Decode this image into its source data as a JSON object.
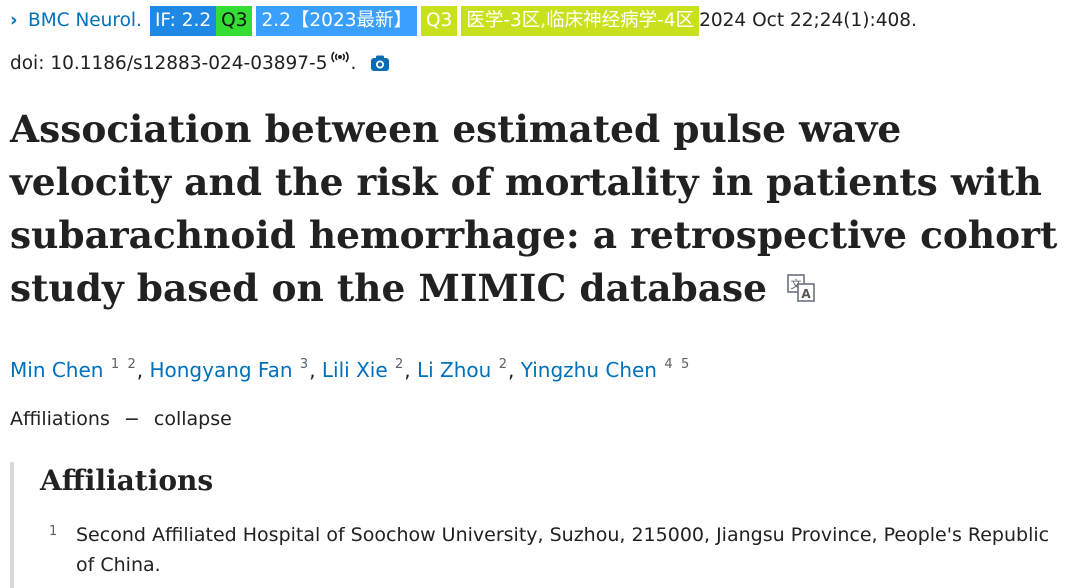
{
  "citation": {
    "journal": "BMC Neurol.",
    "if_badge": "IF: 2.2",
    "q_badge": "Q3",
    "if_2023_badge": "2.2【2023最新】",
    "q_badge_2": "Q3",
    "category_badge": "医学-3区,临床神经病学-4区",
    "date": "2024 Oct 22;24(1):408.",
    "doi": "doi: 10.1186/s12883-024-03897-5",
    "period": "."
  },
  "title": "Association between estimated pulse wave velocity and the risk of mortality in patients with subarachnoid hemorrhage: a retrospective cohort study based on the MIMIC database",
  "authors": [
    {
      "name": "Min Chen",
      "sups": [
        "1",
        "2"
      ]
    },
    {
      "name": "Hongyang Fan",
      "sups": [
        "3"
      ]
    },
    {
      "name": "Lili Xie",
      "sups": [
        "2"
      ]
    },
    {
      "name": "Li Zhou",
      "sups": [
        "2"
      ]
    },
    {
      "name": "Yingzhu Chen",
      "sups": [
        "4",
        "5"
      ]
    }
  ],
  "affiliations_toggle": {
    "label": "Affiliations",
    "dash": "−",
    "action": "collapse"
  },
  "affiliations": {
    "heading": "Affiliations",
    "items": [
      {
        "num": "1",
        "text": "Second Affiliated Hospital of Soochow University, Suzhou, 215000, Jiangsu Province, People's Republic of China."
      }
    ]
  },
  "colors": {
    "link": "#0071bc",
    "if_badge": "#1e88e5",
    "q_badge": "#33dd33",
    "if_2023_badge": "#3aa0ff",
    "category_badge": "#c9e11d"
  },
  "icons": {
    "chevron": "chevron-right-icon",
    "broadcast": "broadcast-icon",
    "camera": "camera-icon",
    "translate": "translate-icon"
  }
}
